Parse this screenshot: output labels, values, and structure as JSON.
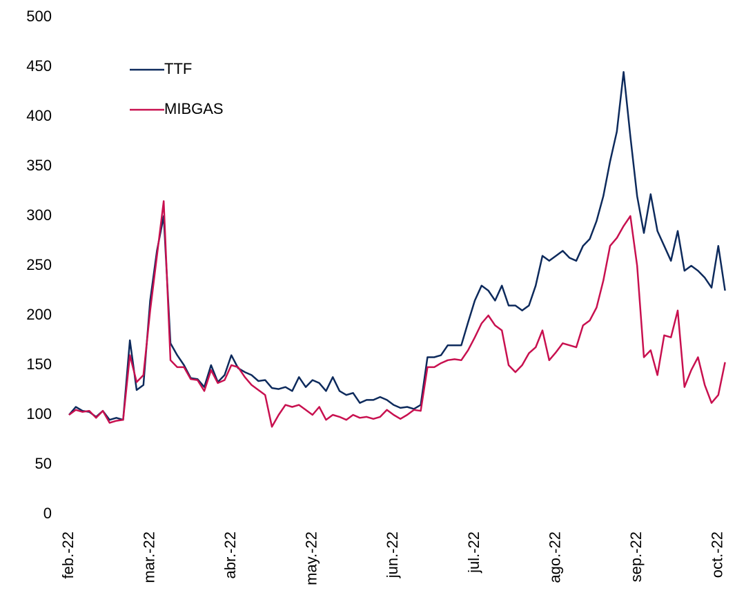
{
  "chart_data": {
    "type": "line",
    "categories": [
      "feb.-22",
      null,
      null,
      null,
      null,
      null,
      null,
      null,
      null,
      null,
      null,
      null,
      "mar.-22",
      null,
      null,
      null,
      null,
      null,
      null,
      null,
      null,
      null,
      null,
      null,
      "abr.-22",
      null,
      null,
      null,
      null,
      null,
      null,
      null,
      null,
      null,
      null,
      null,
      "may.-22",
      null,
      null,
      null,
      null,
      null,
      null,
      null,
      null,
      null,
      null,
      null,
      "jun.-22",
      null,
      null,
      null,
      null,
      null,
      null,
      null,
      null,
      null,
      null,
      null,
      "jul.-22",
      null,
      null,
      null,
      null,
      null,
      null,
      null,
      null,
      null,
      null,
      null,
      "ago.-22",
      null,
      null,
      null,
      null,
      null,
      null,
      null,
      null,
      null,
      null,
      null,
      "sep.-22",
      null,
      null,
      null,
      null,
      null,
      null,
      null,
      null,
      null,
      null,
      null,
      "oct.-22",
      null
    ],
    "series": [
      {
        "name": "TTF",
        "color": "#0d2a5c",
        "values": [
          100,
          108,
          104,
          103,
          98,
          104,
          95,
          97,
          95,
          175,
          125,
          130,
          215,
          265,
          300,
          172,
          160,
          150,
          137,
          136,
          128,
          150,
          133,
          140,
          160,
          147,
          143,
          140,
          134,
          135,
          127,
          126,
          128,
          124,
          138,
          128,
          135,
          132,
          124,
          138,
          124,
          120,
          122,
          112,
          115,
          115,
          118,
          115,
          110,
          107,
          108,
          106,
          110,
          158,
          158,
          160,
          170,
          170,
          170,
          193,
          215,
          230,
          225,
          215,
          230,
          210,
          210,
          205,
          210,
          230,
          260,
          255,
          260,
          265,
          258,
          255,
          270,
          277,
          295,
          320,
          355,
          385,
          445,
          380,
          320,
          283,
          322,
          285,
          270,
          255,
          285,
          245,
          250,
          245,
          238,
          228,
          270,
          225
        ]
      },
      {
        "name": "MIBGAS",
        "color": "#c8104f",
        "values": [
          100,
          105,
          103,
          104,
          97,
          104,
          92,
          94,
          95,
          160,
          133,
          140,
          205,
          260,
          315,
          155,
          148,
          148,
          136,
          135,
          124,
          145,
          132,
          135,
          150,
          148,
          138,
          130,
          125,
          120,
          88,
          100,
          110,
          108,
          110,
          105,
          100,
          108,
          95,
          100,
          98,
          95,
          100,
          97,
          98,
          96,
          98,
          105,
          100,
          96,
          100,
          105,
          104,
          148,
          148,
          152,
          155,
          156,
          155,
          165,
          178,
          192,
          200,
          190,
          185,
          150,
          143,
          150,
          162,
          168,
          185,
          155,
          163,
          172,
          170,
          168,
          190,
          195,
          208,
          235,
          270,
          278,
          290,
          300,
          250,
          158,
          165,
          140,
          180,
          178,
          205,
          128,
          145,
          158,
          130,
          112,
          120,
          153
        ]
      }
    ],
    "ylim": [
      0,
      500
    ],
    "yticks": [
      0,
      50,
      100,
      150,
      200,
      250,
      300,
      350,
      400,
      450,
      500
    ],
    "legend": "upper left",
    "grid": false
  }
}
